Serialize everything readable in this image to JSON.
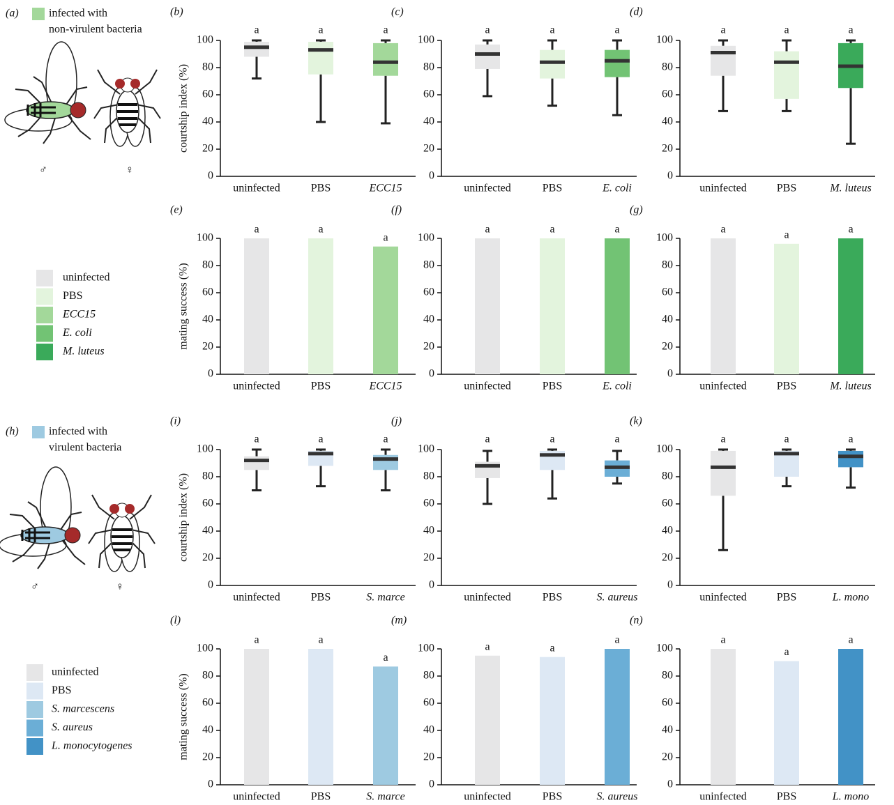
{
  "panels": [
    {
      "label": "(a)",
      "caption": [
        "infected with",
        "non-virulent bacteria"
      ],
      "color": "#a3d89a",
      "male": "♂",
      "female": "♀"
    },
    {
      "label": "(h)",
      "caption": [
        "infected with",
        "virulent bacteria"
      ],
      "color": "#9ecae1",
      "male": "♂",
      "female": "♀"
    }
  ],
  "legends": [
    {
      "items": [
        {
          "label": "uninfected",
          "color": "#e6e6e7"
        },
        {
          "label": "PBS",
          "color": "#e3f4dd"
        },
        {
          "label": "ECC15",
          "color": "#a3d89a"
        },
        {
          "label": "E. coli",
          "color": "#72c374"
        },
        {
          "label": "M. luteus",
          "color": "#3aaa5a"
        }
      ]
    },
    {
      "items": [
        {
          "label": "uninfected",
          "color": "#e6e6e7"
        },
        {
          "label": "PBS",
          "color": "#dde8f4"
        },
        {
          "label": "S. marcescens",
          "color": "#9ecae1"
        },
        {
          "label": "S. aureus",
          "color": "#6baed6"
        },
        {
          "label": "L. monocytogenes",
          "color": "#4292c6"
        }
      ]
    }
  ],
  "chart_data": [
    {
      "type": "box",
      "panel_label": "(b)",
      "ylabel": "courtship index (%)",
      "categories": [
        "uninfected",
        "PBS",
        "ECC15"
      ],
      "colors": [
        "#e6e6e7",
        "#e3f4dd",
        "#a3d89a"
      ],
      "stats": [
        {
          "whislo": 72,
          "q1": 88,
          "med": 95,
          "q3": 99,
          "whishi": 100
        },
        {
          "whislo": 40,
          "q1": 75,
          "med": 93,
          "q3": 99,
          "whishi": 100
        },
        {
          "whislo": 39,
          "q1": 74,
          "med": 84,
          "q3": 98,
          "whishi": 100
        }
      ],
      "letters": [
        "a",
        "a",
        "a"
      ],
      "ylim": [
        0,
        100
      ],
      "yticks": [
        0,
        20,
        40,
        60,
        80,
        100
      ]
    },
    {
      "type": "box",
      "panel_label": "(c)",
      "categories": [
        "uninfected",
        "PBS",
        "E. coli"
      ],
      "colors": [
        "#e6e6e7",
        "#e3f4dd",
        "#72c374"
      ],
      "stats": [
        {
          "whislo": 59,
          "q1": 79,
          "med": 90,
          "q3": 97,
          "whishi": 100
        },
        {
          "whislo": 52,
          "q1": 72,
          "med": 84,
          "q3": 93,
          "whishi": 100
        },
        {
          "whislo": 45,
          "q1": 73,
          "med": 85,
          "q3": 93,
          "whishi": 100
        }
      ],
      "letters": [
        "a",
        "a",
        "a"
      ],
      "ylim": [
        0,
        100
      ],
      "yticks": [
        0,
        20,
        40,
        60,
        80,
        100
      ]
    },
    {
      "type": "box",
      "panel_label": "(d)",
      "categories": [
        "uninfected",
        "PBS",
        "M. luteus"
      ],
      "colors": [
        "#e6e6e7",
        "#e3f4dd",
        "#3aaa5a"
      ],
      "stats": [
        {
          "whislo": 48,
          "q1": 74,
          "med": 91,
          "q3": 96,
          "whishi": 100
        },
        {
          "whislo": 48,
          "q1": 57,
          "med": 84,
          "q3": 92,
          "whishi": 100
        },
        {
          "whislo": 24,
          "q1": 65,
          "med": 81,
          "q3": 98,
          "whishi": 100
        }
      ],
      "letters": [
        "a",
        "a",
        "a"
      ],
      "ylim": [
        0,
        100
      ],
      "yticks": [
        0,
        20,
        40,
        60,
        80,
        100
      ]
    },
    {
      "type": "bar",
      "panel_label": "(e)",
      "ylabel": "mating success (%)",
      "categories": [
        "uninfected",
        "PBS",
        "ECC15"
      ],
      "colors": [
        "#e6e6e7",
        "#e3f4dd",
        "#a3d89a"
      ],
      "values": [
        100,
        100,
        94
      ],
      "letters": [
        "a",
        "a",
        "a"
      ],
      "ylim": [
        0,
        100
      ],
      "yticks": [
        0,
        20,
        40,
        60,
        80,
        100
      ]
    },
    {
      "type": "bar",
      "panel_label": "(f)",
      "categories": [
        "uninfected",
        "PBS",
        "E. coli"
      ],
      "colors": [
        "#e6e6e7",
        "#e3f4dd",
        "#72c374"
      ],
      "values": [
        100,
        100,
        100
      ],
      "letters": [
        "a",
        "a",
        "a"
      ],
      "ylim": [
        0,
        100
      ],
      "yticks": [
        0,
        20,
        40,
        60,
        80,
        100
      ]
    },
    {
      "type": "bar",
      "panel_label": "(g)",
      "categories": [
        "uninfected",
        "PBS",
        "M. luteus"
      ],
      "colors": [
        "#e6e6e7",
        "#e3f4dd",
        "#3aaa5a"
      ],
      "values": [
        100,
        96,
        100
      ],
      "letters": [
        "a",
        "a",
        "a"
      ],
      "ylim": [
        0,
        100
      ],
      "yticks": [
        0,
        20,
        40,
        60,
        80,
        100
      ]
    },
    {
      "type": "box",
      "panel_label": "(i)",
      "ylabel": "courtship index (%)",
      "categories": [
        "uninfected",
        "PBS",
        "S. marce"
      ],
      "colors": [
        "#e6e6e7",
        "#dde8f4",
        "#9ecae1"
      ],
      "stats": [
        {
          "whislo": 70,
          "q1": 85,
          "med": 92,
          "q3": 95,
          "whishi": 100
        },
        {
          "whislo": 73,
          "q1": 88,
          "med": 97,
          "q3": 99,
          "whishi": 100
        },
        {
          "whislo": 70,
          "q1": 85,
          "med": 93,
          "q3": 96,
          "whishi": 100
        }
      ],
      "letters": [
        "a",
        "a",
        "a"
      ],
      "ylim": [
        0,
        100
      ],
      "yticks": [
        0,
        20,
        40,
        60,
        80,
        100
      ]
    },
    {
      "type": "box",
      "panel_label": "(j)",
      "categories": [
        "uninfected",
        "PBS",
        "S. aureus"
      ],
      "colors": [
        "#e6e6e7",
        "#dde8f4",
        "#6baed6"
      ],
      "stats": [
        {
          "whislo": 60,
          "q1": 79,
          "med": 88,
          "q3": 91,
          "whishi": 99
        },
        {
          "whislo": 64,
          "q1": 85,
          "med": 96,
          "q3": 99,
          "whishi": 100
        },
        {
          "whislo": 75,
          "q1": 80,
          "med": 87,
          "q3": 92,
          "whishi": 99
        }
      ],
      "letters": [
        "a",
        "a",
        "a"
      ],
      "ylim": [
        0,
        100
      ],
      "yticks": [
        0,
        20,
        40,
        60,
        80,
        100
      ]
    },
    {
      "type": "box",
      "panel_label": "(k)",
      "categories": [
        "uninfected",
        "PBS",
        "L. mono"
      ],
      "colors": [
        "#e6e6e7",
        "#dde8f4",
        "#4292c6"
      ],
      "stats": [
        {
          "whislo": 26,
          "q1": 66,
          "med": 87,
          "q3": 99,
          "whishi": 100
        },
        {
          "whislo": 73,
          "q1": 80,
          "med": 97,
          "q3": 99,
          "whishi": 100
        },
        {
          "whislo": 72,
          "q1": 87,
          "med": 95,
          "q3": 99,
          "whishi": 100
        }
      ],
      "letters": [
        "a",
        "a",
        "a"
      ],
      "ylim": [
        0,
        100
      ],
      "yticks": [
        0,
        20,
        40,
        60,
        80,
        100
      ]
    },
    {
      "type": "bar",
      "panel_label": "(l)",
      "ylabel": "mating success (%)",
      "categories": [
        "uninfected",
        "PBS",
        "S. marce"
      ],
      "colors": [
        "#e6e6e7",
        "#dde8f4",
        "#9ecae1"
      ],
      "values": [
        100,
        100,
        87
      ],
      "letters": [
        "a",
        "a",
        "a"
      ],
      "ylim": [
        0,
        100
      ],
      "yticks": [
        0,
        20,
        40,
        60,
        80,
        100
      ]
    },
    {
      "type": "bar",
      "panel_label": "(m)",
      "categories": [
        "uninfected",
        "PBS",
        "S. aureus"
      ],
      "colors": [
        "#e6e6e7",
        "#dde8f4",
        "#6baed6"
      ],
      "values": [
        95,
        94,
        100
      ],
      "letters": [
        "a",
        "a",
        "a"
      ],
      "ylim": [
        0,
        100
      ],
      "yticks": [
        0,
        20,
        40,
        60,
        80,
        100
      ]
    },
    {
      "type": "bar",
      "panel_label": "(n)",
      "categories": [
        "uninfected",
        "PBS",
        "L. mono"
      ],
      "colors": [
        "#e6e6e7",
        "#dde8f4",
        "#4292c6"
      ],
      "values": [
        100,
        91,
        100
      ],
      "letters": [
        "a",
        "a",
        "a"
      ],
      "ylim": [
        0,
        100
      ],
      "yticks": [
        0,
        20,
        40,
        60,
        80,
        100
      ]
    }
  ]
}
